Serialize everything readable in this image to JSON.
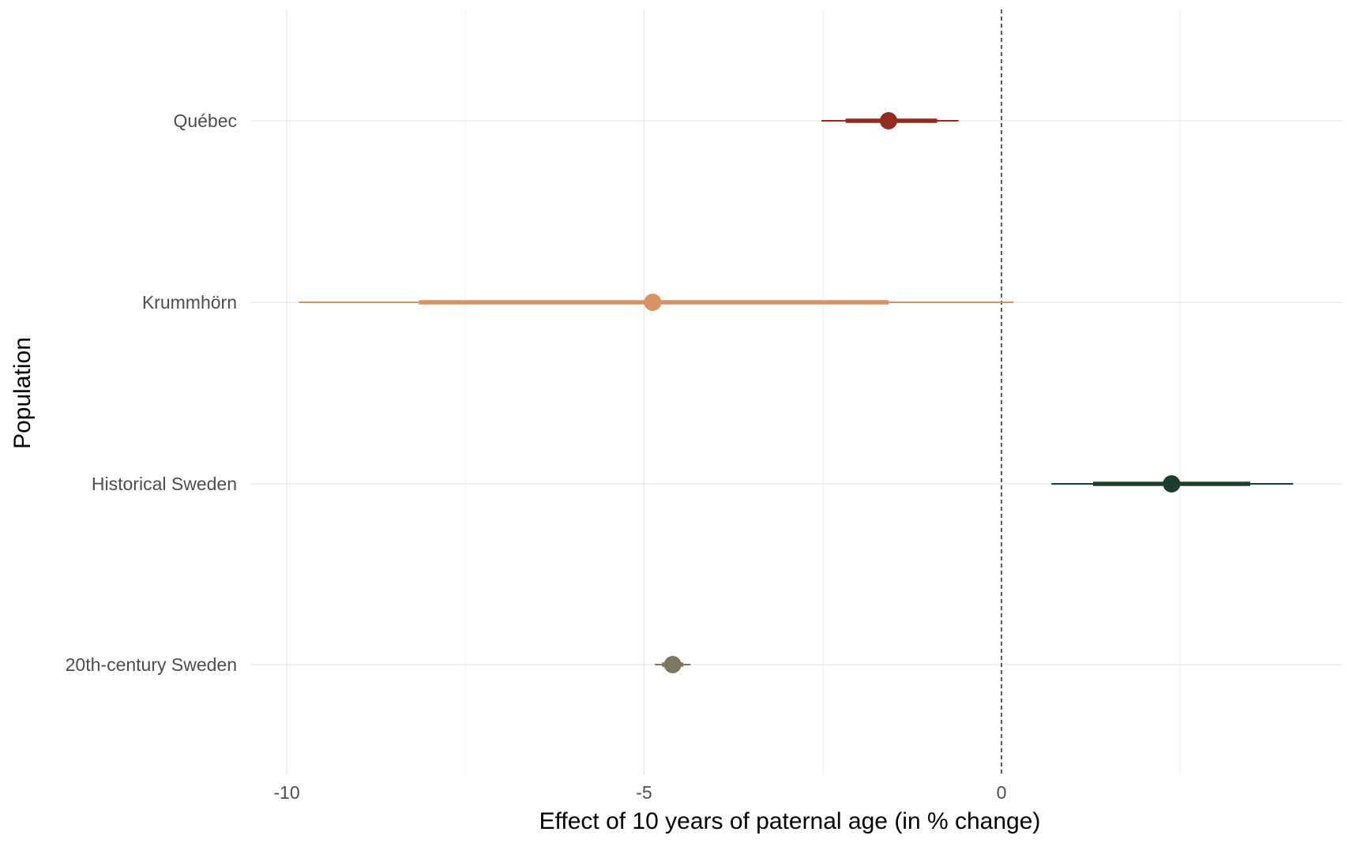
{
  "chart_data": {
    "type": "pointrange",
    "title": "",
    "xlabel": "Effect of 10 years of paternal age (in % change)",
    "ylabel": "Population",
    "xlim": [
      -12,
      4.8
    ],
    "x_ticks": [
      -10,
      -5,
      0
    ],
    "x_tick_labels": [
      "-10",
      "-5",
      "0"
    ],
    "x_minor_ticks": [
      -7.5,
      -2.5,
      2.5
    ],
    "reference_line": {
      "x": 0,
      "style": "dashed"
    },
    "grid": true,
    "legend": "none",
    "categories": [
      "Québec",
      "Krummhörn",
      "Historical Sweden",
      "20th-century Sweden"
    ],
    "series": [
      {
        "category": "Québec",
        "estimate": -1.58,
        "inner": [
          -2.18,
          -0.9
        ],
        "outer": [
          -2.52,
          -0.6
        ],
        "color": "#952a21"
      },
      {
        "category": "Krummhörn",
        "estimate": -4.88,
        "inner": [
          -8.15,
          -1.58
        ],
        "outer": [
          -9.83,
          0.17
        ],
        "color": "#d89263"
      },
      {
        "category": "Historical Sweden",
        "estimate": 2.38,
        "inner": [
          1.28,
          3.48
        ],
        "outer": [
          0.7,
          4.08
        ],
        "color": "#1b3f2c"
      },
      {
        "category": "20th-century Sweden",
        "estimate": -4.6,
        "inner": [
          -4.75,
          -4.45
        ],
        "outer": [
          -4.85,
          -4.35
        ],
        "color": "#7b7761"
      }
    ]
  }
}
